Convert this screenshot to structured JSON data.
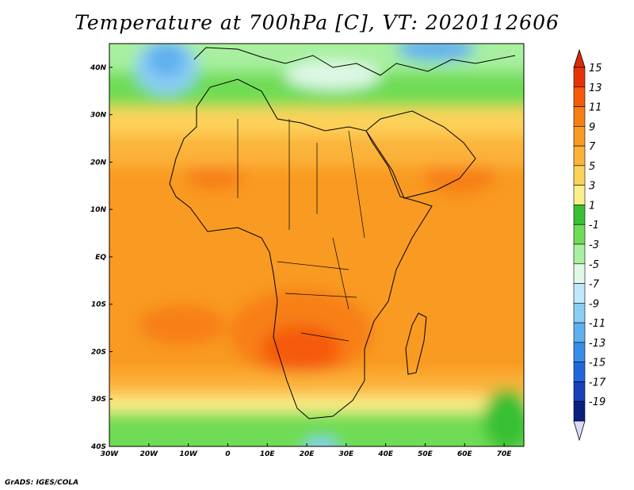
{
  "title": "Temperature at 700hPa [C], VT: 2020112606",
  "credit": "GrADS: IGES/COLA",
  "chart_data": {
    "type": "heatmap",
    "variable": "Temperature at 700hPa",
    "units": "C",
    "valid_time": "2020112606",
    "lon_range": [
      -30,
      75
    ],
    "lat_range": [
      -40,
      45
    ],
    "x_ticks": [
      "30W",
      "20W",
      "10W",
      "0",
      "10E",
      "20E",
      "30E",
      "40E",
      "50E",
      "60E",
      "70E"
    ],
    "y_ticks": [
      "40N",
      "30N",
      "20N",
      "10N",
      "EQ",
      "10S",
      "20S",
      "30S",
      "40S"
    ],
    "colorbar": {
      "levels": [
        15,
        13,
        11,
        9,
        7,
        5,
        3,
        1,
        -1,
        -3,
        -5,
        -7,
        -9,
        -11,
        -13,
        -15,
        -17,
        -19
      ],
      "labels": [
        "15",
        "13",
        "11",
        "9",
        "7",
        "5",
        "3",
        "1",
        "-1",
        "-3",
        "-5",
        "-7",
        "-9",
        "-11",
        "-13",
        "-15",
        "-17",
        "-19"
      ],
      "colors": [
        "#e8320a",
        "#f55a0a",
        "#f77f12",
        "#f99a22",
        "#fbb33a",
        "#fdd25a",
        "#fcef8a",
        "#39c035",
        "#6fdc55",
        "#a8f0a0",
        "#dff8e8",
        "#bfe8fb",
        "#8ccdf5",
        "#5fb0ee",
        "#3a8de6",
        "#2266db",
        "#1840b8",
        "#0b1f80"
      ],
      "over_color": "#d92b0a",
      "under_color": "#d8dcf8"
    }
  }
}
